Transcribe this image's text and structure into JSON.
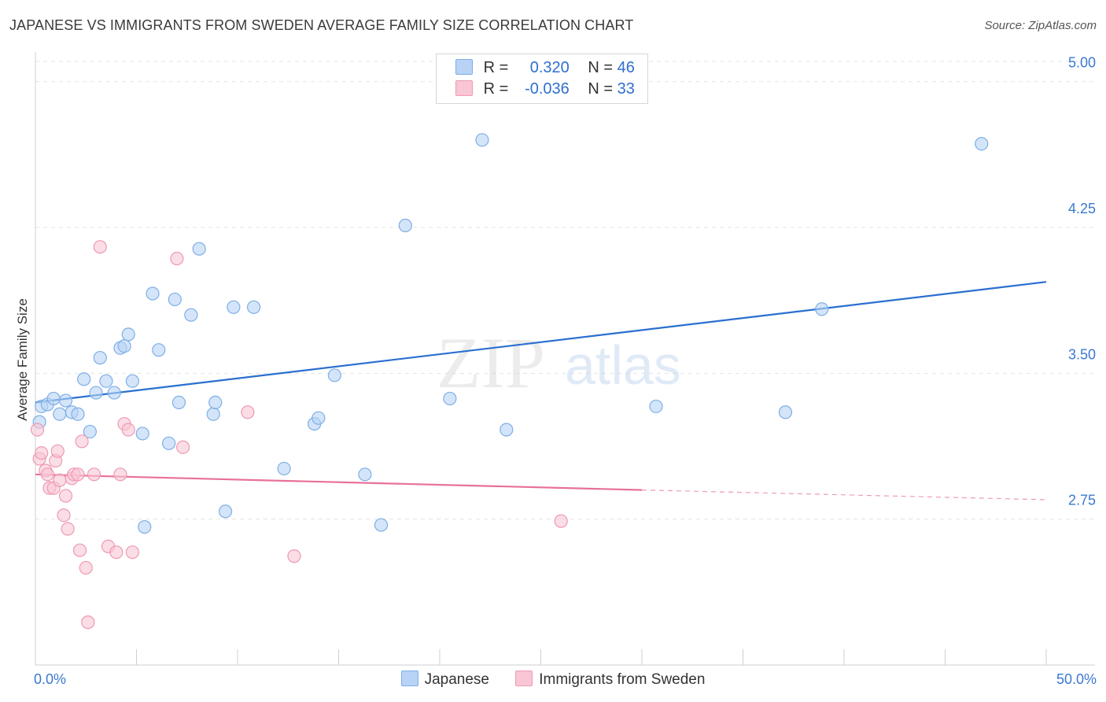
{
  "title": "JAPANESE VS IMMIGRANTS FROM SWEDEN AVERAGE FAMILY SIZE CORRELATION CHART",
  "source": "Source: ZipAtlas.com",
  "watermark": {
    "zip": "ZIP",
    "atlas": "atlas"
  },
  "colors": {
    "japanese_fill": "#b8d3f5",
    "japanese_stroke": "#7eaee6",
    "japanese_line": "#2a6fd0",
    "sweden_fill": "#f8c6d4",
    "sweden_stroke": "#ee9ab3",
    "sweden_line": "#e8709a",
    "tick_label": "#3b78d0",
    "grid": "#e3e3e3"
  },
  "legend": {
    "rows": [
      {
        "r_label": "R = ",
        "r_value": "0.320",
        "n_label": "N = ",
        "n_value": "46"
      },
      {
        "r_label": "R = ",
        "r_value": "-0.036",
        "n_label": "N = ",
        "n_value": "33"
      }
    ]
  },
  "chart_data": {
    "type": "scatter",
    "title": "JAPANESE VS IMMIGRANTS FROM SWEDEN AVERAGE FAMILY SIZE CORRELATION CHART",
    "xlabel": "",
    "ylabel": "Average Family Size",
    "xlim": [
      0,
      50
    ],
    "ylim": [
      2.0,
      5.12
    ],
    "x_tick_labels": [
      "0.0%",
      "50.0%"
    ],
    "y_ticks": [
      2.75,
      3.5,
      4.25,
      5.0
    ],
    "y_tick_labels": [
      "2.75",
      "3.50",
      "4.25",
      "5.00"
    ],
    "grid": "horizontal dashed",
    "legend_position": "top-center",
    "series": [
      {
        "name": "Japanese",
        "color": "#b8d3f5",
        "trend": {
          "x": [
            0,
            50
          ],
          "y": [
            3.35,
            3.97
          ]
        },
        "points": [
          [
            0.2,
            3.25
          ],
          [
            0.3,
            3.33
          ],
          [
            0.6,
            3.34
          ],
          [
            0.9,
            3.37
          ],
          [
            1.2,
            3.29
          ],
          [
            1.5,
            3.36
          ],
          [
            1.8,
            3.3
          ],
          [
            2.1,
            3.29
          ],
          [
            2.4,
            3.47
          ],
          [
            2.7,
            3.2
          ],
          [
            3.0,
            3.4
          ],
          [
            3.2,
            3.58
          ],
          [
            3.5,
            3.46
          ],
          [
            3.9,
            3.4
          ],
          [
            4.2,
            3.63
          ],
          [
            4.4,
            3.64
          ],
          [
            4.6,
            3.7
          ],
          [
            4.8,
            3.46
          ],
          [
            5.3,
            3.19
          ],
          [
            5.8,
            3.91
          ],
          [
            6.1,
            3.62
          ],
          [
            6.6,
            3.14
          ],
          [
            6.9,
            3.88
          ],
          [
            7.1,
            3.35
          ],
          [
            7.7,
            3.8
          ],
          [
            8.1,
            4.14
          ],
          [
            8.8,
            3.29
          ],
          [
            8.9,
            3.35
          ],
          [
            9.4,
            2.79
          ],
          [
            9.8,
            3.84
          ],
          [
            10.8,
            3.84
          ],
          [
            12.3,
            3.01
          ],
          [
            13.8,
            3.24
          ],
          [
            14.0,
            3.27
          ],
          [
            14.8,
            3.49
          ],
          [
            16.3,
            2.98
          ],
          [
            17.1,
            2.72
          ],
          [
            18.3,
            4.26
          ],
          [
            20.5,
            3.37
          ],
          [
            22.1,
            4.7
          ],
          [
            23.3,
            3.21
          ],
          [
            30.7,
            3.33
          ],
          [
            37.1,
            3.3
          ],
          [
            38.9,
            3.83
          ],
          [
            46.8,
            4.68
          ],
          [
            5.4,
            2.71
          ]
        ]
      },
      {
        "name": "Immigrants from Sweden",
        "color": "#f8c6d4",
        "trend": {
          "x": [
            0,
            30
          ],
          "y": [
            2.98,
            2.9
          ],
          "dashed_to": {
            "x": 50,
            "y": 2.85
          }
        },
        "points": [
          [
            0.1,
            3.21
          ],
          [
            0.2,
            3.06
          ],
          [
            0.3,
            3.09
          ],
          [
            0.5,
            3.0
          ],
          [
            0.6,
            2.98
          ],
          [
            0.7,
            2.91
          ],
          [
            0.9,
            2.91
          ],
          [
            1.0,
            3.05
          ],
          [
            1.1,
            3.1
          ],
          [
            1.2,
            2.95
          ],
          [
            1.4,
            2.77
          ],
          [
            1.5,
            2.87
          ],
          [
            1.6,
            2.7
          ],
          [
            1.8,
            2.96
          ],
          [
            1.9,
            2.98
          ],
          [
            2.1,
            2.98
          ],
          [
            2.2,
            2.59
          ],
          [
            2.3,
            3.15
          ],
          [
            2.5,
            2.5
          ],
          [
            2.6,
            2.22
          ],
          [
            2.9,
            2.98
          ],
          [
            3.2,
            4.15
          ],
          [
            3.6,
            2.61
          ],
          [
            4.0,
            2.58
          ],
          [
            4.2,
            2.98
          ],
          [
            4.4,
            3.24
          ],
          [
            4.6,
            3.21
          ],
          [
            4.8,
            2.58
          ],
          [
            7.0,
            4.09
          ],
          [
            7.3,
            3.12
          ],
          [
            10.5,
            3.3
          ],
          [
            12.8,
            2.56
          ],
          [
            26.0,
            2.74
          ]
        ]
      }
    ]
  },
  "bottom_legend": [
    {
      "label": "Japanese"
    },
    {
      "label": "Immigrants from Sweden"
    }
  ]
}
